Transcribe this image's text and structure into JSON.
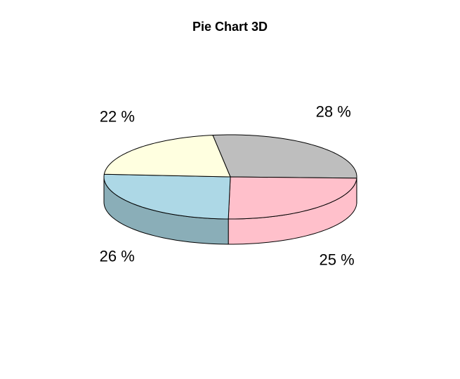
{
  "chart_data": {
    "type": "pie",
    "title": "Pie Chart 3D",
    "slices": [
      {
        "label": "28 %",
        "value": 28,
        "top_color": "#bebebe",
        "side_color": "#bebebe"
      },
      {
        "label": "25 %",
        "value": 25,
        "top_color": "#ffc0cb",
        "side_color": "#ffc0cb"
      },
      {
        "label": "26 %",
        "value": 26,
        "top_color": "#add8e6",
        "side_color": "#8aaeb8"
      },
      {
        "label": "22 %",
        "value": 22,
        "top_color": "#ffffe0",
        "side_color": "#cdcdb3"
      }
    ]
  }
}
